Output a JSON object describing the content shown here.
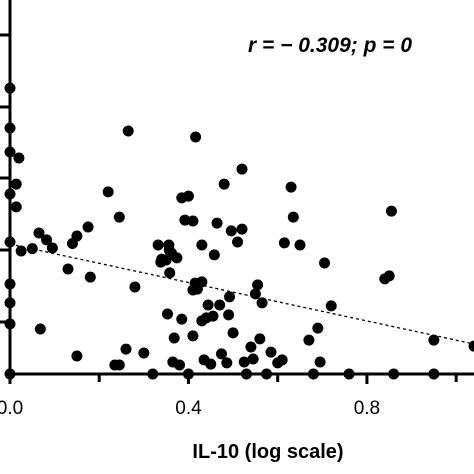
{
  "chart_data": {
    "type": "scatter",
    "xlabel": "IL-10 (log scale)",
    "ylabel": "",
    "annotation": "r = − 0.309; p = 0",
    "x_ticks": [
      "0.0",
      "0.4",
      "0.8"
    ],
    "x_tick_values": [
      0.0,
      0.4,
      0.8
    ],
    "xlim": [
      0.0,
      1.04
    ],
    "ylim": [
      0.0,
      1.0
    ],
    "grid": false,
    "legend": "none",
    "trendline": {
      "style": "dashed",
      "x": [
        0.0,
        1.04
      ],
      "y": [
        0.433,
        0.1
      ]
    },
    "series": [
      {
        "points": [
          {
            "x": 0.0,
            "y": 0.953
          },
          {
            "x": 0.0,
            "y": 0.82
          },
          {
            "x": 0.0,
            "y": 0.74
          },
          {
            "x": 0.0,
            "y": 0.6
          },
          {
            "x": 0.0,
            "y": 0.44
          },
          {
            "x": 0.0,
            "y": 0.3
          },
          {
            "x": 0.0,
            "y": 0.237
          },
          {
            "x": 0.0,
            "y": 0.167
          },
          {
            "x": 0.0,
            "y": 0.0
          },
          {
            "x": 0.014,
            "y": 0.633
          },
          {
            "x": 0.014,
            "y": 0.557
          },
          {
            "x": 0.02,
            "y": 0.72
          },
          {
            "x": 0.025,
            "y": 0.41
          },
          {
            "x": 0.05,
            "y": 0.418
          },
          {
            "x": 0.065,
            "y": 0.47
          },
          {
            "x": 0.068,
            "y": 0.15
          },
          {
            "x": 0.082,
            "y": 0.447
          },
          {
            "x": 0.095,
            "y": 0.42
          },
          {
            "x": 0.13,
            "y": 0.35
          },
          {
            "x": 0.14,
            "y": 0.435
          },
          {
            "x": 0.15,
            "y": 0.46
          },
          {
            "x": 0.15,
            "y": 0.06
          },
          {
            "x": 0.175,
            "y": 0.49
          },
          {
            "x": 0.18,
            "y": 0.323
          },
          {
            "x": 0.22,
            "y": 0.607
          },
          {
            "x": 0.235,
            "y": 0.03
          },
          {
            "x": 0.245,
            "y": 0.03
          },
          {
            "x": 0.245,
            "y": 0.523
          },
          {
            "x": 0.26,
            "y": 0.083
          },
          {
            "x": 0.265,
            "y": 0.81
          },
          {
            "x": 0.28,
            "y": 0.29
          },
          {
            "x": 0.3,
            "y": 0.07
          },
          {
            "x": 0.32,
            "y": 0.0
          },
          {
            "x": 0.332,
            "y": 0.43
          },
          {
            "x": 0.338,
            "y": 0.373
          },
          {
            "x": 0.34,
            "y": 0.383
          },
          {
            "x": 0.35,
            "y": 0.38
          },
          {
            "x": 0.353,
            "y": 0.2
          },
          {
            "x": 0.356,
            "y": 0.43
          },
          {
            "x": 0.357,
            "y": 0.413
          },
          {
            "x": 0.358,
            "y": 0.337
          },
          {
            "x": 0.362,
            "y": 0.403
          },
          {
            "x": 0.365,
            "y": 0.04
          },
          {
            "x": 0.368,
            "y": 0.12
          },
          {
            "x": 0.374,
            "y": 0.387
          },
          {
            "x": 0.38,
            "y": 0.03
          },
          {
            "x": 0.385,
            "y": 0.587
          },
          {
            "x": 0.385,
            "y": 0.183
          },
          {
            "x": 0.392,
            "y": 0.513
          },
          {
            "x": 0.4,
            "y": 0.593
          },
          {
            "x": 0.4,
            "y": 0.0
          },
          {
            "x": 0.41,
            "y": 0.28
          },
          {
            "x": 0.41,
            "y": 0.51
          },
          {
            "x": 0.41,
            "y": 0.127
          },
          {
            "x": 0.415,
            "y": 0.303
          },
          {
            "x": 0.416,
            "y": 0.79
          },
          {
            "x": 0.42,
            "y": 0.283
          },
          {
            "x": 0.43,
            "y": 0.43
          },
          {
            "x": 0.43,
            "y": 0.307
          },
          {
            "x": 0.43,
            "y": 0.177
          },
          {
            "x": 0.435,
            "y": 0.047
          },
          {
            "x": 0.44,
            "y": 0.187
          },
          {
            "x": 0.444,
            "y": 0.23
          },
          {
            "x": 0.45,
            "y": 0.033
          },
          {
            "x": 0.455,
            "y": 0.193
          },
          {
            "x": 0.458,
            "y": 0.397
          },
          {
            "x": 0.464,
            "y": 0.503
          },
          {
            "x": 0.47,
            "y": 0.23
          },
          {
            "x": 0.474,
            "y": 0.067
          },
          {
            "x": 0.48,
            "y": 0.633
          },
          {
            "x": 0.486,
            "y": 0.037
          },
          {
            "x": 0.49,
            "y": 0.197
          },
          {
            "x": 0.492,
            "y": 0.257
          },
          {
            "x": 0.496,
            "y": 0.477
          },
          {
            "x": 0.5,
            "y": 0.137
          },
          {
            "x": 0.51,
            "y": 0.44
          },
          {
            "x": 0.52,
            "y": 0.683
          },
          {
            "x": 0.52,
            "y": 0.483
          },
          {
            "x": 0.525,
            "y": 0.04
          },
          {
            "x": 0.53,
            "y": 0.0
          },
          {
            "x": 0.54,
            "y": 0.09
          },
          {
            "x": 0.545,
            "y": 0.05
          },
          {
            "x": 0.55,
            "y": 0.267
          },
          {
            "x": 0.555,
            "y": 0.297
          },
          {
            "x": 0.56,
            "y": 0.117
          },
          {
            "x": 0.565,
            "y": 0.237
          },
          {
            "x": 0.575,
            "y": 0.0
          },
          {
            "x": 0.585,
            "y": 0.073
          },
          {
            "x": 0.6,
            "y": 0.037
          },
          {
            "x": 0.61,
            "y": 0.047
          },
          {
            "x": 0.615,
            "y": 0.437
          },
          {
            "x": 0.63,
            "y": 0.623
          },
          {
            "x": 0.635,
            "y": 0.523
          },
          {
            "x": 0.65,
            "y": 0.43
          },
          {
            "x": 0.67,
            "y": 0.113
          },
          {
            "x": 0.68,
            "y": 0.0
          },
          {
            "x": 0.69,
            "y": 0.153
          },
          {
            "x": 0.695,
            "y": 0.04
          },
          {
            "x": 0.705,
            "y": 0.37
          },
          {
            "x": 0.72,
            "y": 0.227
          },
          {
            "x": 0.76,
            "y": 0.0
          },
          {
            "x": 0.84,
            "y": 0.317
          },
          {
            "x": 0.85,
            "y": 0.327
          },
          {
            "x": 0.855,
            "y": 0.543
          },
          {
            "x": 0.86,
            "y": 0.0
          },
          {
            "x": 0.95,
            "y": 0.113
          },
          {
            "x": 0.95,
            "y": 0.0
          },
          {
            "x": 1.04,
            "y": 0.093
          }
        ]
      }
    ]
  }
}
